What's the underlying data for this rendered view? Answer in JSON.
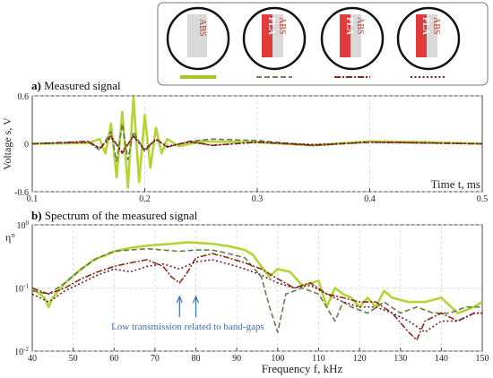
{
  "legend": {
    "items": [
      {
        "labels": [
          "ABS"
        ],
        "line_color": "#a8c520",
        "line_style": "solid"
      },
      {
        "labels": [
          "PLA",
          "ABS"
        ],
        "line_color": "#6a8a5a",
        "line_style": "dashed"
      },
      {
        "labels": [
          "PLA",
          "ABS"
        ],
        "line_color": "#8b2a1a",
        "line_style": "dash-dot"
      },
      {
        "labels": [
          "PLA",
          "ABS"
        ],
        "line_color": "#7a1f2a",
        "line_style": "dotted"
      }
    ],
    "colors": {
      "abs_block": "#d9d9d9",
      "pla_block": "#e23b3b",
      "label_text": "#c0392b"
    }
  },
  "chart_data": [
    {
      "type": "line",
      "panel_letter": "a)",
      "title": "Measured signal",
      "xlabel": "Time t, ms",
      "ylabel": "Voltage s, V",
      "xlim": [
        0.1,
        0.5
      ],
      "ylim": [
        -0.6,
        0.6
      ],
      "xticks": [
        "0.1",
        "0.2",
        "0.3",
        "0.4",
        "0.5"
      ],
      "yticks": [
        "-0.6",
        "0",
        "0.6"
      ],
      "grid": true,
      "series": [
        {
          "color": "#b5d334",
          "style": "solid",
          "x": [
            0.1,
            0.15,
            0.16,
            0.165,
            0.17,
            0.175,
            0.18,
            0.185,
            0.19,
            0.195,
            0.2,
            0.205,
            0.21,
            0.215,
            0.22,
            0.23,
            0.25,
            0.3,
            0.35,
            0.4,
            0.45,
            0.5
          ],
          "y": [
            0.0,
            0.01,
            0.06,
            -0.12,
            0.25,
            -0.42,
            0.4,
            -0.55,
            0.58,
            -0.48,
            0.36,
            -0.3,
            0.2,
            -0.12,
            0.06,
            -0.03,
            0.03,
            0.02,
            -0.02,
            0.03,
            0.02,
            0.0
          ]
        },
        {
          "color": "#5e7e4a",
          "style": "dashed",
          "x": [
            0.1,
            0.15,
            0.16,
            0.17,
            0.175,
            0.18,
            0.185,
            0.19,
            0.2,
            0.21,
            0.22,
            0.24,
            0.26,
            0.3,
            0.35,
            0.4,
            0.45,
            0.5
          ],
          "y": [
            0.0,
            0.02,
            -0.08,
            0.15,
            -0.22,
            0.25,
            -0.2,
            0.15,
            -0.1,
            0.06,
            -0.04,
            0.03,
            0.06,
            0.04,
            -0.02,
            0.02,
            0.01,
            0.0
          ]
        },
        {
          "color": "#8b2a1a",
          "style": "dashdot",
          "x": [
            0.1,
            0.15,
            0.16,
            0.17,
            0.18,
            0.19,
            0.2,
            0.21,
            0.22,
            0.24,
            0.26,
            0.3,
            0.35,
            0.4,
            0.45,
            0.5
          ],
          "y": [
            0.0,
            0.03,
            -0.06,
            0.1,
            -0.12,
            0.1,
            -0.08,
            0.06,
            -0.04,
            0.03,
            -0.02,
            0.02,
            -0.02,
            0.02,
            0.01,
            0.0
          ]
        },
        {
          "color": "#6e1c2a",
          "style": "dotted",
          "x": [
            0.1,
            0.15,
            0.16,
            0.17,
            0.18,
            0.19,
            0.2,
            0.21,
            0.22,
            0.24,
            0.26,
            0.3,
            0.35,
            0.4,
            0.45,
            0.5
          ],
          "y": [
            0.0,
            0.02,
            -0.05,
            0.08,
            -0.1,
            0.09,
            -0.07,
            0.05,
            -0.03,
            0.02,
            -0.02,
            0.02,
            -0.01,
            0.02,
            0.01,
            0.0
          ]
        }
      ]
    },
    {
      "type": "line",
      "panel_letter": "b)",
      "title": "Spectrum of the measured signal",
      "xlabel": "Frequency f, kHz",
      "ylabel": "η°",
      "xlim": [
        40,
        150
      ],
      "ylim": [
        0.01,
        1.0
      ],
      "yscale": "log",
      "xticks": [
        "40",
        "50",
        "60",
        "70",
        "80",
        "90",
        "100",
        "110",
        "120",
        "130",
        "140",
        "150"
      ],
      "grid": true,
      "annotation": {
        "text": "Low transmission related to band-gaps",
        "arrow_x": [
          76,
          80
        ],
        "color": "#3a6fb5"
      },
      "series": [
        {
          "color": "#b5d334",
          "style": "solid",
          "x": [
            40,
            43,
            44,
            45,
            48,
            52,
            55,
            58,
            60,
            63,
            66,
            70,
            74,
            78,
            80,
            84,
            88,
            92,
            94,
            96,
            98,
            100,
            103,
            106,
            110,
            112,
            114,
            116,
            118,
            120,
            122,
            124,
            126,
            128,
            132,
            136,
            140,
            144,
            148,
            150
          ],
          "y": [
            0.1,
            0.07,
            0.05,
            0.07,
            0.12,
            0.2,
            0.28,
            0.33,
            0.38,
            0.42,
            0.45,
            0.48,
            0.5,
            0.53,
            0.52,
            0.5,
            0.46,
            0.4,
            0.33,
            0.22,
            0.15,
            0.2,
            0.18,
            0.11,
            0.13,
            0.05,
            0.1,
            0.08,
            0.07,
            0.05,
            0.07,
            0.05,
            0.09,
            0.07,
            0.06,
            0.06,
            0.07,
            0.04,
            0.05,
            0.06
          ]
        },
        {
          "color": "#5e7e4a",
          "style": "dashed",
          "x": [
            40,
            44,
            48,
            52,
            56,
            60,
            64,
            68,
            72,
            76,
            80,
            84,
            88,
            92,
            96,
            98,
            100,
            102,
            106,
            110,
            114,
            116,
            118,
            122,
            126,
            130,
            134,
            138,
            142,
            146,
            150
          ],
          "y": [
            0.09,
            0.08,
            0.12,
            0.2,
            0.3,
            0.38,
            0.4,
            0.42,
            0.4,
            0.38,
            0.4,
            0.4,
            0.35,
            0.3,
            0.15,
            0.05,
            0.02,
            0.08,
            0.1,
            0.08,
            0.03,
            0.06,
            0.05,
            0.04,
            0.06,
            0.04,
            0.05,
            0.04,
            0.04,
            0.05,
            0.05
          ]
        },
        {
          "color": "#8b2a1a",
          "style": "dashdot",
          "x": [
            40,
            44,
            48,
            52,
            56,
            60,
            64,
            68,
            72,
            74,
            76,
            78,
            80,
            84,
            88,
            92,
            96,
            100,
            104,
            108,
            112,
            116,
            120,
            124,
            128,
            132,
            134,
            136,
            140,
            144,
            148,
            150
          ],
          "y": [
            0.1,
            0.08,
            0.1,
            0.14,
            0.18,
            0.22,
            0.25,
            0.28,
            0.22,
            0.15,
            0.12,
            0.18,
            0.3,
            0.35,
            0.3,
            0.25,
            0.2,
            0.14,
            0.1,
            0.12,
            0.08,
            0.07,
            0.06,
            0.06,
            0.04,
            0.02,
            0.015,
            0.03,
            0.04,
            0.03,
            0.04,
            0.04
          ]
        },
        {
          "color": "#6e1c2a",
          "style": "dotted",
          "x": [
            40,
            44,
            48,
            52,
            56,
            60,
            64,
            68,
            72,
            76,
            80,
            84,
            88,
            92,
            96,
            100,
            104,
            108,
            112,
            116,
            120,
            124,
            128,
            132,
            136,
            140,
            144,
            148,
            150
          ],
          "y": [
            0.08,
            0.06,
            0.09,
            0.12,
            0.16,
            0.2,
            0.18,
            0.22,
            0.24,
            0.2,
            0.26,
            0.28,
            0.24,
            0.2,
            0.16,
            0.12,
            0.1,
            0.11,
            0.08,
            0.06,
            0.05,
            0.05,
            0.04,
            0.03,
            0.02,
            0.03,
            0.03,
            0.04,
            0.04
          ]
        }
      ]
    }
  ]
}
